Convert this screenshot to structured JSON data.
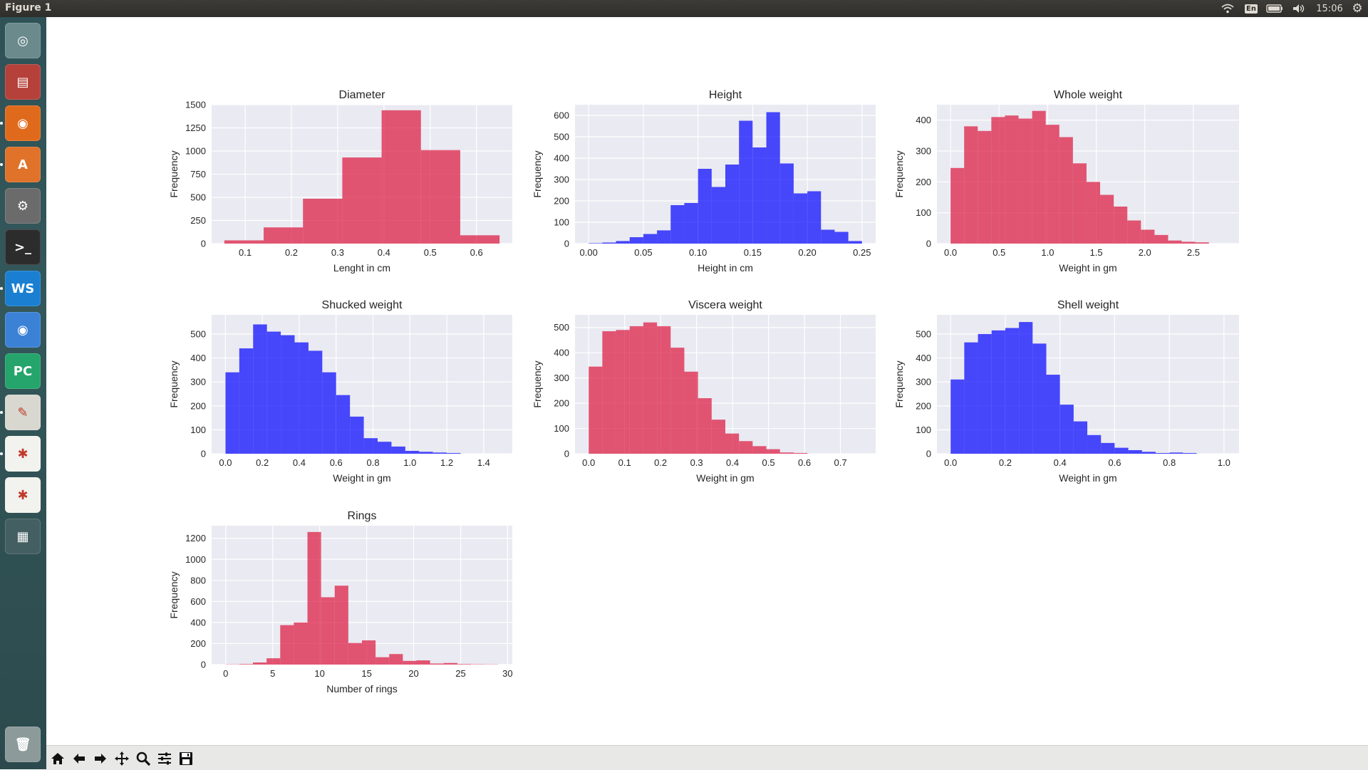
{
  "window": {
    "title": "Figure 1"
  },
  "tray": {
    "keyboard": "En",
    "clock": "15:06",
    "icons": [
      "wifi-icon",
      "keyboard-layout-icon",
      "battery-icon",
      "volume-icon",
      "clock",
      "settings-gear-icon"
    ]
  },
  "launcher": {
    "items": [
      {
        "name": "dash-home-icon",
        "glyph": "◎",
        "bg": "#6a8a8c"
      },
      {
        "name": "files-icon",
        "glyph": "▤",
        "bg": "#b5413a"
      },
      {
        "name": "firefox-icon",
        "glyph": "◉",
        "bg": "#e06a1c"
      },
      {
        "name": "software-center-icon",
        "glyph": "A",
        "bg": "#e0722a"
      },
      {
        "name": "system-settings-icon",
        "glyph": "⚙",
        "bg": "#6b6b6b"
      },
      {
        "name": "terminal-icon",
        "glyph": ">_",
        "bg": "#2c2c2c"
      },
      {
        "name": "webstorm-icon",
        "glyph": "WS",
        "bg": "#1a7fd1"
      },
      {
        "name": "chrome-icon",
        "glyph": "◉",
        "bg": "#3b82d6"
      },
      {
        "name": "pycharm-icon",
        "glyph": "PC",
        "bg": "#25a46b"
      },
      {
        "name": "text-editor-icon",
        "glyph": "✎",
        "bg": "#d8d8d0"
      },
      {
        "name": "app-icon-1",
        "glyph": "✱",
        "bg": "#f2f2ee"
      },
      {
        "name": "app-icon-2",
        "glyph": "✱",
        "bg": "#f2f2ee"
      },
      {
        "name": "workspace-switcher-icon",
        "glyph": "▦",
        "bg": "#445f62"
      },
      {
        "name": "trash-icon",
        "glyph": "🗑",
        "bg": "#8c9a9a"
      }
    ]
  },
  "toolbar": {
    "buttons": [
      {
        "name": "home-icon"
      },
      {
        "name": "back-arrow-icon"
      },
      {
        "name": "forward-arrow-icon"
      },
      {
        "name": "pan-icon"
      },
      {
        "name": "zoom-icon"
      },
      {
        "name": "configure-subplots-icon"
      },
      {
        "name": "save-icon"
      }
    ]
  },
  "colors": {
    "crimson": "#dc143c",
    "blue": "#0000ff",
    "plot_bg": "#eaeaf2"
  },
  "chart_data": [
    {
      "type": "bar",
      "title": "Diameter",
      "xlabel": "Lenght in cm",
      "ylabel": "Frequency",
      "color": "crimson",
      "alpha": 0.7,
      "xlim": [
        0.0275,
        0.6775
      ],
      "ylim": [
        0,
        1500
      ],
      "xticks": [
        0.1,
        0.2,
        0.3,
        0.4,
        0.5,
        0.6
      ],
      "xtick_labels": [
        "0.1",
        "0.2",
        "0.3",
        "0.4",
        "0.5",
        "0.6"
      ],
      "yticks": [
        0,
        250,
        500,
        750,
        1000,
        1250,
        1500
      ],
      "ytick_labels": [
        "0",
        "250",
        "500",
        "750",
        "1000",
        "1250",
        "1500"
      ],
      "bin_edges": [
        0.055,
        0.14,
        0.225,
        0.31,
        0.395,
        0.48,
        0.565,
        0.65
      ],
      "counts": [
        35,
        175,
        485,
        930,
        1440,
        1010,
        90
      ]
    },
    {
      "type": "bar",
      "title": "Height",
      "xlabel": "Height in cm",
      "ylabel": "Frequency",
      "color": "blue",
      "alpha": 0.7,
      "xlim": [
        -0.0125,
        0.2625
      ],
      "ylim": [
        0,
        650
      ],
      "xticks": [
        0,
        0.05,
        0.1,
        0.15,
        0.2,
        0.25
      ],
      "xtick_labels": [
        "0.00",
        "0.05",
        "0.10",
        "0.15",
        "0.20",
        "0.25"
      ],
      "yticks": [
        0,
        100,
        200,
        300,
        400,
        500,
        600
      ],
      "ytick_labels": [
        "0",
        "100",
        "200",
        "300",
        "400",
        "500",
        "600"
      ],
      "bin_edges": [
        0,
        0.0125,
        0.025,
        0.0375,
        0.05,
        0.0625,
        0.075,
        0.0875,
        0.1,
        0.1125,
        0.125,
        0.1375,
        0.15,
        0.1625,
        0.175,
        0.1875,
        0.2,
        0.2125,
        0.225,
        0.2375,
        0.25
      ],
      "counts": [
        2,
        5,
        12,
        30,
        45,
        62,
        180,
        190,
        350,
        265,
        370,
        575,
        450,
        615,
        375,
        235,
        245,
        65,
        55,
        12
      ]
    },
    {
      "type": "bar",
      "title": "Whole weight",
      "xlabel": "Weight in gm",
      "ylabel": "Frequency",
      "color": "crimson",
      "alpha": 0.7,
      "xlim": [
        -0.14,
        2.97
      ],
      "ylim": [
        0,
        450
      ],
      "xticks": [
        0,
        0.5,
        1.0,
        1.5,
        2.0,
        2.5
      ],
      "xtick_labels": [
        "0.0",
        "0.5",
        "1.0",
        "1.5",
        "2.0",
        "2.5"
      ],
      "yticks": [
        0,
        100,
        200,
        300,
        400
      ],
      "ytick_labels": [
        "0",
        "100",
        "200",
        "300",
        "400"
      ],
      "bin_edges": [
        0,
        0.14,
        0.28,
        0.42,
        0.56,
        0.7,
        0.84,
        0.98,
        1.12,
        1.26,
        1.4,
        1.54,
        1.68,
        1.82,
        1.96,
        2.1,
        2.24,
        2.38,
        2.52,
        2.66
      ],
      "counts": [
        245,
        380,
        365,
        410,
        415,
        405,
        430,
        385,
        345,
        260,
        200,
        158,
        120,
        75,
        45,
        28,
        10,
        6,
        4
      ]
    },
    {
      "type": "bar",
      "title": "Shucked weight",
      "xlabel": "Weight in gm",
      "ylabel": "Frequency",
      "color": "blue",
      "alpha": 0.7,
      "xlim": [
        -0.075,
        1.555
      ],
      "ylim": [
        0,
        580
      ],
      "xticks": [
        0,
        0.2,
        0.4,
        0.6,
        0.8,
        1.0,
        1.2,
        1.4
      ],
      "xtick_labels": [
        "0.0",
        "0.2",
        "0.4",
        "0.6",
        "0.8",
        "1.0",
        "1.2",
        "1.4"
      ],
      "yticks": [
        0,
        100,
        200,
        300,
        400,
        500
      ],
      "ytick_labels": [
        "0",
        "100",
        "200",
        "300",
        "400",
        "500"
      ],
      "bin_edges": [
        0,
        0.075,
        0.15,
        0.225,
        0.3,
        0.375,
        0.45,
        0.525,
        0.6,
        0.675,
        0.75,
        0.825,
        0.9,
        0.975,
        1.05,
        1.125,
        1.2,
        1.275
      ],
      "counts": [
        340,
        440,
        540,
        510,
        495,
        465,
        430,
        340,
        245,
        155,
        65,
        50,
        30,
        12,
        8,
        5,
        3
      ]
    },
    {
      "type": "bar",
      "title": "Viscera weight",
      "xlabel": "Weight in gm",
      "ylabel": "Frequency",
      "color": "crimson",
      "alpha": 0.7,
      "xlim": [
        -0.038,
        0.798
      ],
      "ylim": [
        0,
        550
      ],
      "xticks": [
        0,
        0.1,
        0.2,
        0.3,
        0.4,
        0.5,
        0.6,
        0.7
      ],
      "xtick_labels": [
        "0.0",
        "0.1",
        "0.2",
        "0.3",
        "0.4",
        "0.5",
        "0.6",
        "0.7"
      ],
      "yticks": [
        0,
        100,
        200,
        300,
        400,
        500
      ],
      "ytick_labels": [
        "0",
        "100",
        "200",
        "300",
        "400",
        "500"
      ],
      "bin_edges": [
        0,
        0.038,
        0.076,
        0.114,
        0.152,
        0.19,
        0.228,
        0.266,
        0.304,
        0.342,
        0.38,
        0.418,
        0.456,
        0.494,
        0.532,
        0.57,
        0.608
      ],
      "counts": [
        345,
        485,
        490,
        505,
        520,
        505,
        420,
        325,
        220,
        135,
        80,
        50,
        30,
        18,
        5,
        3
      ]
    },
    {
      "type": "bar",
      "title": "Shell weight",
      "xlabel": "Weight in gm",
      "ylabel": "Frequency",
      "color": "blue",
      "alpha": 0.7,
      "xlim": [
        -0.05,
        1.055
      ],
      "ylim": [
        0,
        580
      ],
      "xticks": [
        0,
        0.2,
        0.4,
        0.6,
        0.8,
        1.0
      ],
      "xtick_labels": [
        "0.0",
        "0.2",
        "0.4",
        "0.6",
        "0.8",
        "1.0"
      ],
      "yticks": [
        0,
        100,
        200,
        300,
        400,
        500
      ],
      "ytick_labels": [
        "0",
        "100",
        "200",
        "300",
        "400",
        "500"
      ],
      "bin_edges": [
        0,
        0.05,
        0.1,
        0.15,
        0.2,
        0.25,
        0.3,
        0.35,
        0.4,
        0.45,
        0.5,
        0.55,
        0.6,
        0.65,
        0.7,
        0.75,
        0.8,
        0.85,
        0.9
      ],
      "counts": [
        310,
        465,
        500,
        515,
        525,
        550,
        460,
        330,
        205,
        135,
        78,
        45,
        25,
        15,
        8,
        3,
        5,
        3
      ]
    },
    {
      "type": "bar",
      "title": "Rings",
      "xlabel": "Number of rings",
      "ylabel": "Frequency",
      "color": "crimson",
      "alpha": 0.7,
      "xlim": [
        -1.5,
        30.5
      ],
      "ylim": [
        0,
        1320
      ],
      "xticks": [
        0,
        5,
        10,
        15,
        20,
        25,
        30
      ],
      "xtick_labels": [
        "0",
        "5",
        "10",
        "15",
        "20",
        "25",
        "30"
      ],
      "yticks": [
        0,
        200,
        400,
        600,
        800,
        1000,
        1200
      ],
      "ytick_labels": [
        "0",
        "200",
        "400",
        "600",
        "800",
        "1000",
        "1200"
      ],
      "bin_edges": [
        0,
        1.45,
        2.9,
        4.35,
        5.8,
        7.25,
        8.7,
        10.15,
        11.6,
        13.05,
        14.5,
        15.95,
        17.4,
        18.85,
        20.3,
        21.75,
        23.2,
        24.65,
        26.1,
        27.55,
        29
      ],
      "counts": [
        2,
        5,
        20,
        60,
        375,
        400,
        1260,
        640,
        750,
        205,
        230,
        70,
        100,
        35,
        40,
        10,
        15,
        5,
        3,
        2
      ]
    }
  ]
}
